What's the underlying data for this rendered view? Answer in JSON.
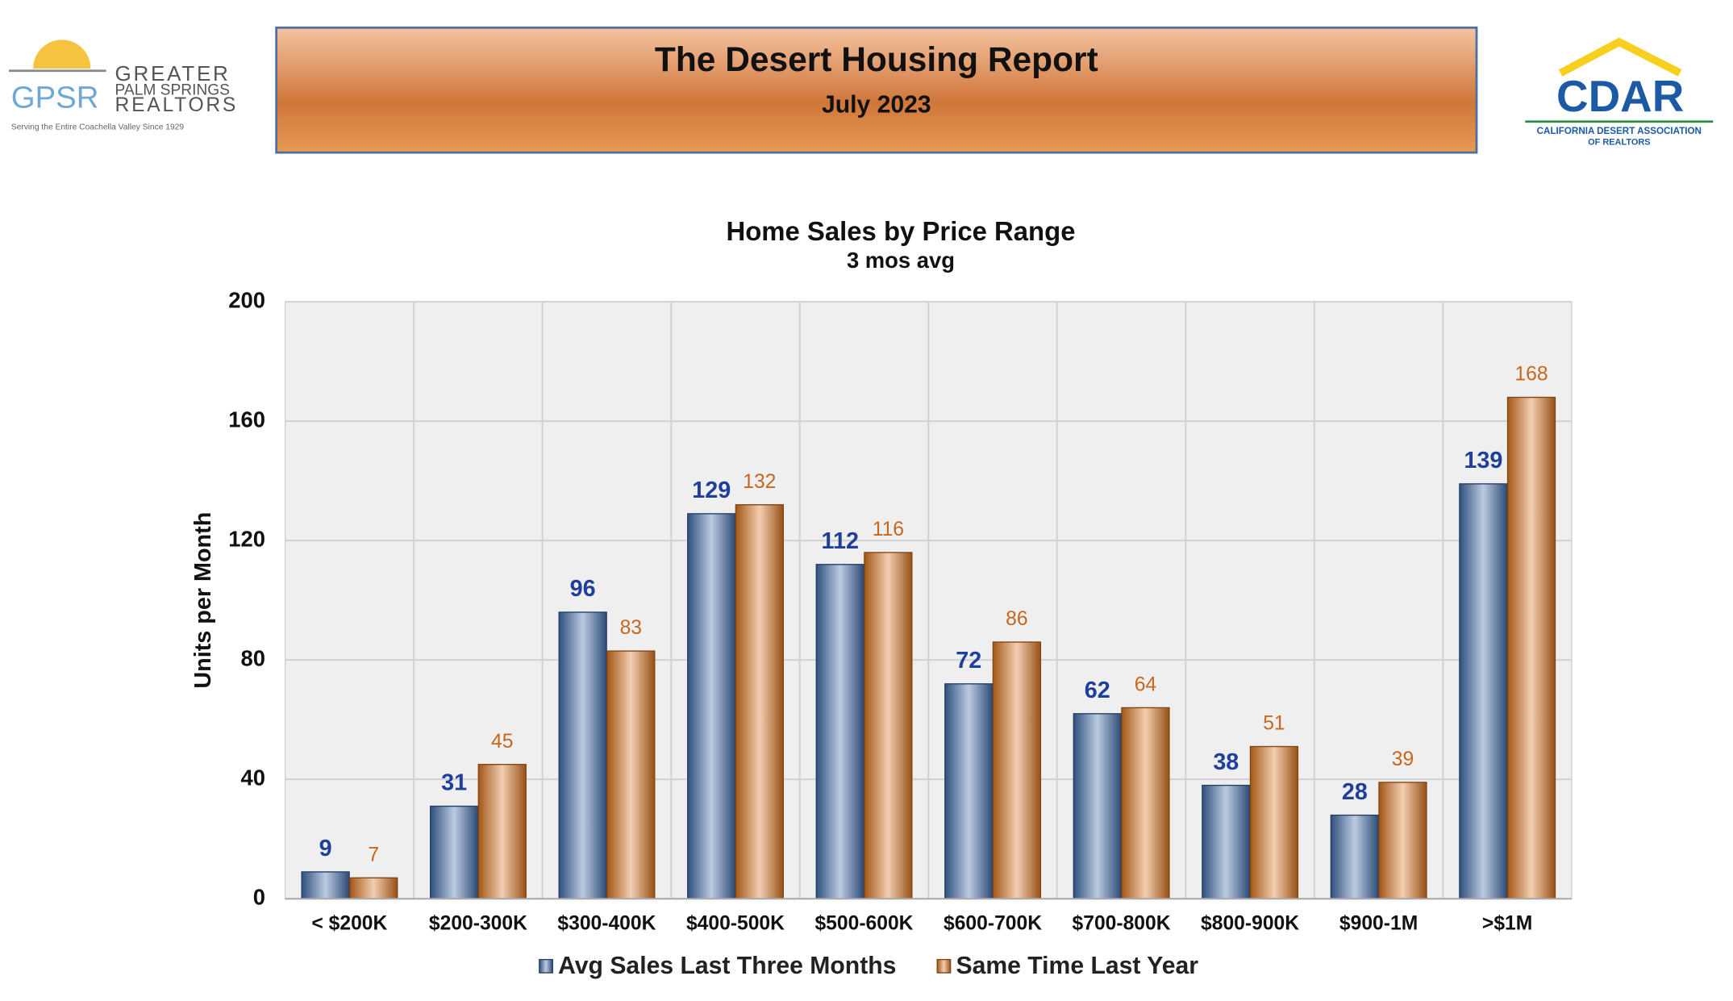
{
  "header": {
    "title": "The Desert Housing Report",
    "subtitle": "July 2023"
  },
  "logos": {
    "left": {
      "mark": "GPSR",
      "line1": "GREATER",
      "line2": "PALM SPRINGS",
      "line3": "REALTORS",
      "tagline": "Serving the Entire Coachella Valley Since 1929"
    },
    "right": {
      "mark": "CDAR",
      "line1": "CALIFORNIA DESERT ASSOCIATION",
      "line2": "OF REALTORS"
    }
  },
  "chart_data": {
    "type": "bar",
    "title": "Home Sales by Price Range",
    "subtitle": "3 mos avg",
    "y_label": "Units per Month",
    "categories": [
      "< $200K",
      "$200-300K",
      "$300-400K",
      "$400-500K",
      "$500-600K",
      "$600-700K",
      "$700-800K",
      "$800-900K",
      "$900-1M",
      ">$1M"
    ],
    "series": [
      {
        "name": "Avg Sales Last Three Months",
        "color": "#3f6aa8",
        "values": [
          9,
          31,
          96,
          129,
          112,
          72,
          62,
          38,
          28,
          139
        ]
      },
      {
        "name": "Same Time Last Year",
        "color": "#d9741f",
        "values": [
          7,
          45,
          83,
          132,
          116,
          86,
          64,
          51,
          39,
          168
        ]
      }
    ],
    "ylim": [
      0,
      200
    ],
    "yticks": [
      0,
      40,
      80,
      120,
      160,
      200
    ],
    "grid": true
  }
}
